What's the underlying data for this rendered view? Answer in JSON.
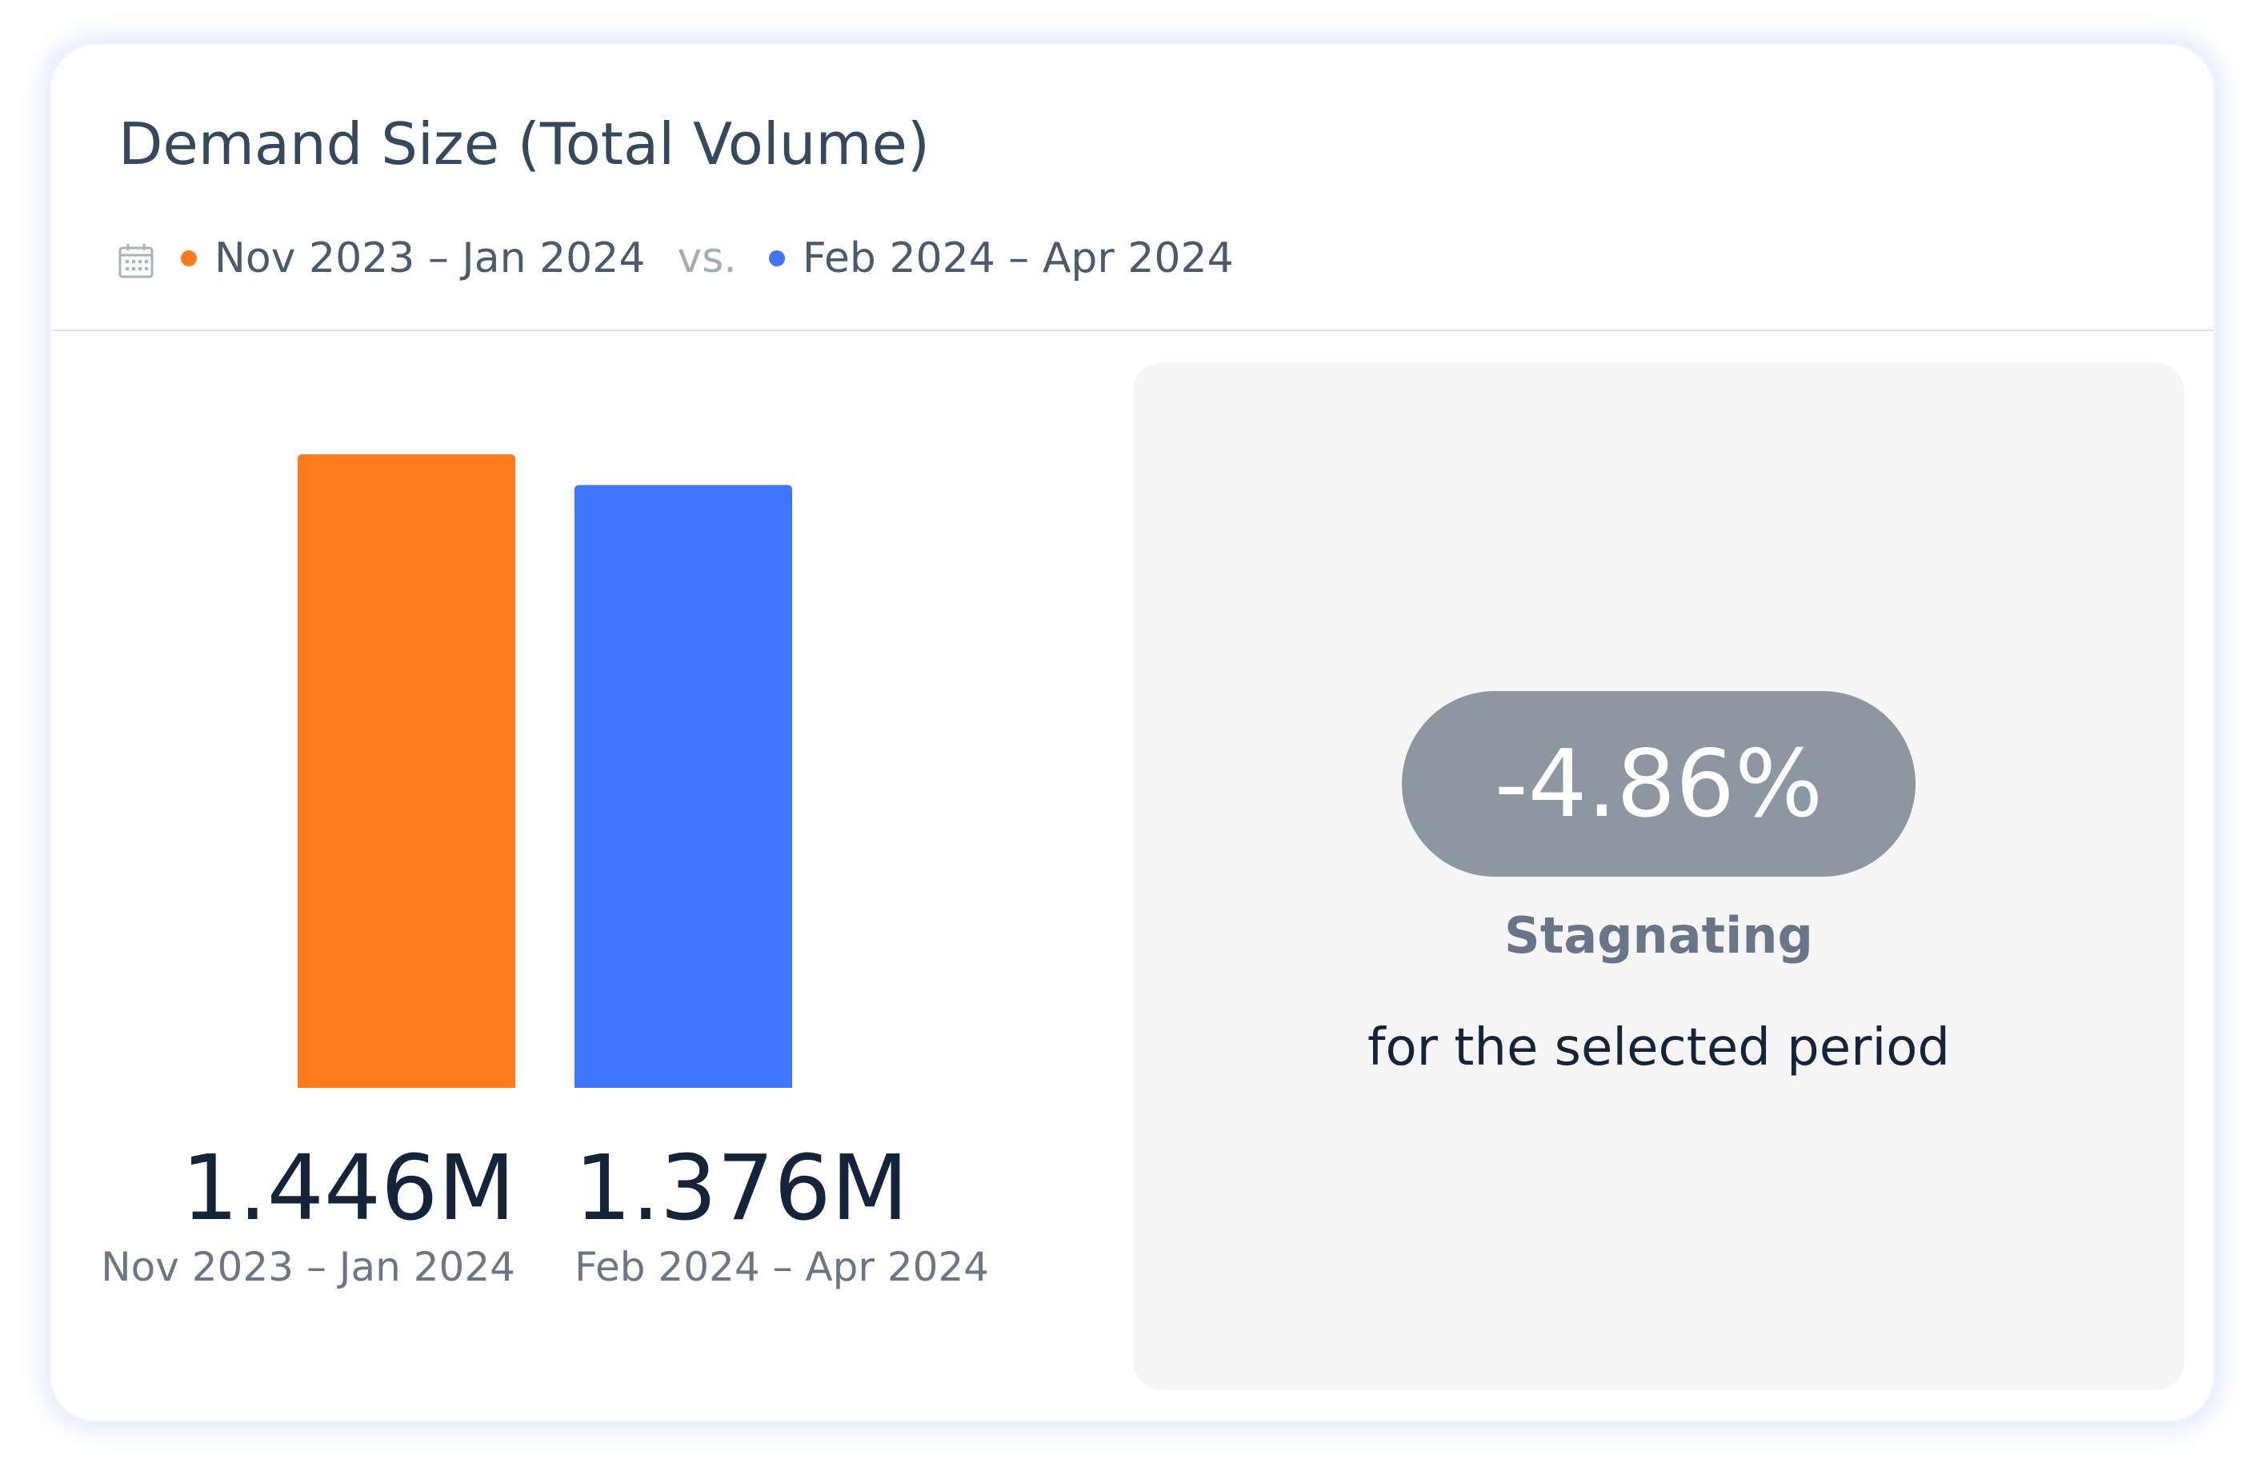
{
  "card": {
    "title": "Demand Size (Total Volume)"
  },
  "legend": {
    "icon": "calendar-icon",
    "period_a": "Nov 2023 – Jan 2024",
    "separator": "vs.",
    "period_b": "Feb 2024 – Apr 2024"
  },
  "colors": {
    "period_a": "#ff7b1c",
    "period_b": "#4075ff",
    "pill_bg": "#8c97a2",
    "panel_bg": "#f5f5f6"
  },
  "chart_data": {
    "type": "bar",
    "title": "Demand Size (Total Volume)",
    "categories": [
      "Nov 2023 – Jan 2024",
      "Feb 2024 – Apr 2024"
    ],
    "values": [
      1.446,
      1.376
    ],
    "unit": "M",
    "value_labels": [
      "1.446M",
      "1.376M"
    ],
    "colors": [
      "#ff7b1c",
      "#4075ff"
    ],
    "axis_visible": false,
    "grid": false
  },
  "summary": {
    "change": "-4.86%",
    "status": "Stagnating",
    "caption": "for the selected period"
  }
}
